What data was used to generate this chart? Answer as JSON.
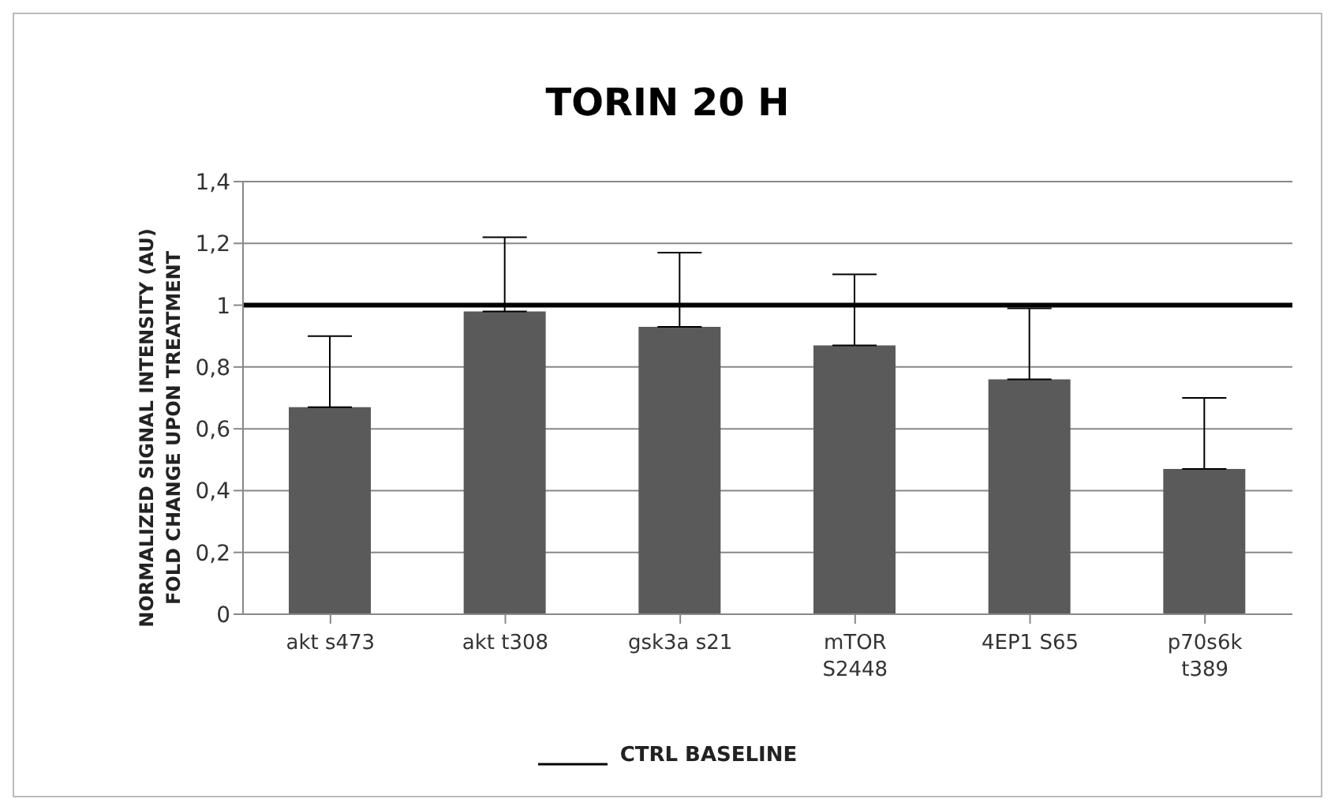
{
  "chart_data": {
    "type": "bar",
    "title": "TORIN 20 H",
    "ylabel": "NORMALIZED  SIGNAL INTENSITY  (AU)\nFOLD CHANGE  UPON TREATMENT",
    "categories": [
      "akt s473",
      "akt t308",
      "gsk3a s21",
      "mTOR\nS2448",
      "4EP1 S65",
      "p70s6k\nt389"
    ],
    "values": [
      0.67,
      0.98,
      0.93,
      0.87,
      0.76,
      0.47
    ],
    "errors": [
      [
        0.67,
        0.9
      ],
      [
        0.98,
        1.22
      ],
      [
        0.93,
        1.17
      ],
      [
        0.87,
        1.1
      ],
      [
        0.76,
        0.99
      ],
      [
        0.47,
        0.7
      ]
    ],
    "color": "#5a5a5a",
    "ylim": [
      0,
      1.4
    ],
    "yticks": [
      0,
      {
        "value": 0.2,
        "label": "0,2"
      },
      {
        "value": 0.4,
        "label": "0,4"
      },
      {
        "value": 0.6,
        "label": "0,6"
      },
      {
        "value": 0.8,
        "label": "0,8"
      },
      1,
      {
        "value": 1.2,
        "label": "1,2"
      },
      {
        "value": 1.4,
        "label": "1,4"
      }
    ],
    "grid": "y",
    "legend": "bottom",
    "ref_lines": [
      {
        "axis": "y",
        "value": 1,
        "label": "CTRL BASELINE",
        "color": "#000000"
      }
    ]
  }
}
